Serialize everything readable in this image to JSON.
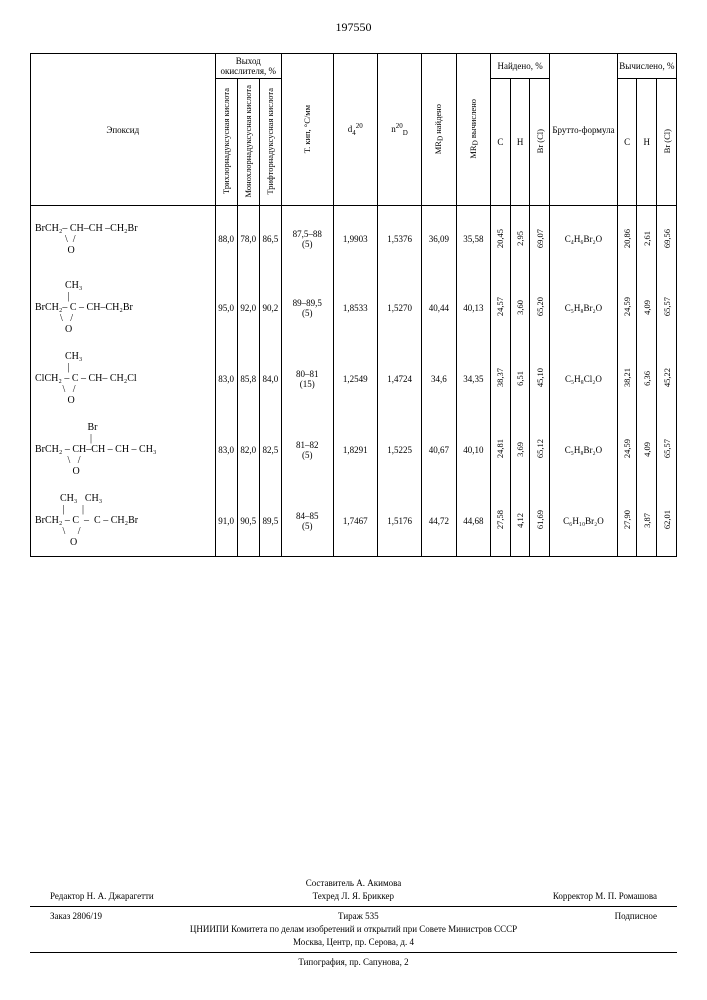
{
  "doc_number": "197550",
  "headers": {
    "epoxide": "Эпоксид",
    "yield_group": "Выход окислителя, %",
    "yield_cols": [
      "Трихлорнадуксусная кислота",
      "Монохлорнадуксусная кислота",
      "Трифторнадуксусная кислота"
    ],
    "bp": "Т. кип, °C/мм",
    "d": "d₄²⁰",
    "n": "n_D²⁰",
    "mrd_found": "MR_D найдено",
    "mrd_calc": "MR_D вычислено",
    "found_group": "Найдено, %",
    "calc_group": "Вычислено, %",
    "brutto": "Брутто-формула",
    "c": "C",
    "h": "H",
    "brcl": "Br (Cl)"
  },
  "rows": [
    {
      "epoxide_lines": [
        "BrCH₂– CH–CH –CH₂Br",
        "            \\  /",
        "             O"
      ],
      "y1": "88,0",
      "y2": "78,0",
      "y3": "86,5",
      "bp": "87,5–88\n(5)",
      "d": "1,9903",
      "n": "1,5376",
      "mrd_f": "36,09",
      "mrd_c": "35,58",
      "fc": "20,45",
      "fh": "2,95",
      "fbr": "69,07",
      "brutto": "C₄H₆Br₂O",
      "cc": "20,86",
      "ch": "2,61",
      "cbr": "69,56"
    },
    {
      "epoxide_lines": [
        "            CH₃",
        "             |",
        "BrCH₂– C – CH–CH₂Br",
        "          \\   /",
        "            O"
      ],
      "y1": "95,0",
      "y2": "92,0",
      "y3": "90,2",
      "bp": "89–89,5\n(5)",
      "d": "1,8533",
      "n": "1,5270",
      "mrd_f": "40,44",
      "mrd_c": "40,13",
      "fc": "24,57",
      "fh": "3,60",
      "fbr": "65,20",
      "brutto": "C₅H₈Br₂O",
      "cc": "24,59",
      "ch": "4,09",
      "cbr": "65,57"
    },
    {
      "epoxide_lines": [
        "            CH₃",
        "             |",
        "ClCH₂ – C – CH– CH₂Cl",
        "           \\   /",
        "             O"
      ],
      "y1": "83,0",
      "y2": "85,8",
      "y3": "84,0",
      "bp": "80–81\n(15)",
      "d": "1,2549",
      "n": "1,4724",
      "mrd_f": "34,6",
      "mrd_c": "34,35",
      "fc": "38,37",
      "fh": "6,51",
      "fbr": "45,10",
      "brutto": "C₅H₈Cl₂O",
      "cc": "38,21",
      "ch": "6,36",
      "cbr": "45,22"
    },
    {
      "epoxide_lines": [
        "                     Br",
        "                      |",
        "BrCH₂ – CH–CH – CH – CH₃",
        "             \\   /",
        "               O"
      ],
      "y1": "83,0",
      "y2": "82,0",
      "y3": "82,5",
      "bp": "81–82\n(5)",
      "d": "1,8291",
      "n": "1,5225",
      "mrd_f": "40,67",
      "mrd_c": "40,10",
      "fc": "24,81",
      "fh": "3,69",
      "fbr": "65,12",
      "brutto": "C₅H₈Br₂O",
      "cc": "24,59",
      "ch": "4,09",
      "cbr": "65,57"
    },
    {
      "epoxide_lines": [
        "          CH₃   CH₃",
        "           |       |",
        "BrCH₂ – C  –  C – CH₂Br",
        "           \\     /",
        "              O"
      ],
      "y1": "91,0",
      "y2": "90,5",
      "y3": "89,5",
      "bp": "84–85\n(5)",
      "d": "1,7467",
      "n": "1,5176",
      "mrd_f": "44,72",
      "mrd_c": "44,68",
      "fc": "27,58",
      "fh": "4,12",
      "fbr": "61,69",
      "brutto": "C₆H₁₀Br₂O",
      "cc": "27,90",
      "ch": "3,87",
      "cbr": "62,01"
    }
  ],
  "footer": {
    "compiler": "Составитель А. Акимова",
    "editor": "Редактор Н. А. Джарагетти",
    "tech": "Техред Л. Я. Бриккер",
    "corrector": "Корректор М. П. Ромашова",
    "order": "Заказ 2806/19",
    "tirage": "Тираж 535",
    "sub": "Подписное",
    "org": "ЦНИИПИ Комитета по делам изобретений и открытий при Совете Министров СССР",
    "addr": "Москва, Центр, пр. Серова, д. 4",
    "typo": "Типография, пр. Сапунова, 2"
  }
}
